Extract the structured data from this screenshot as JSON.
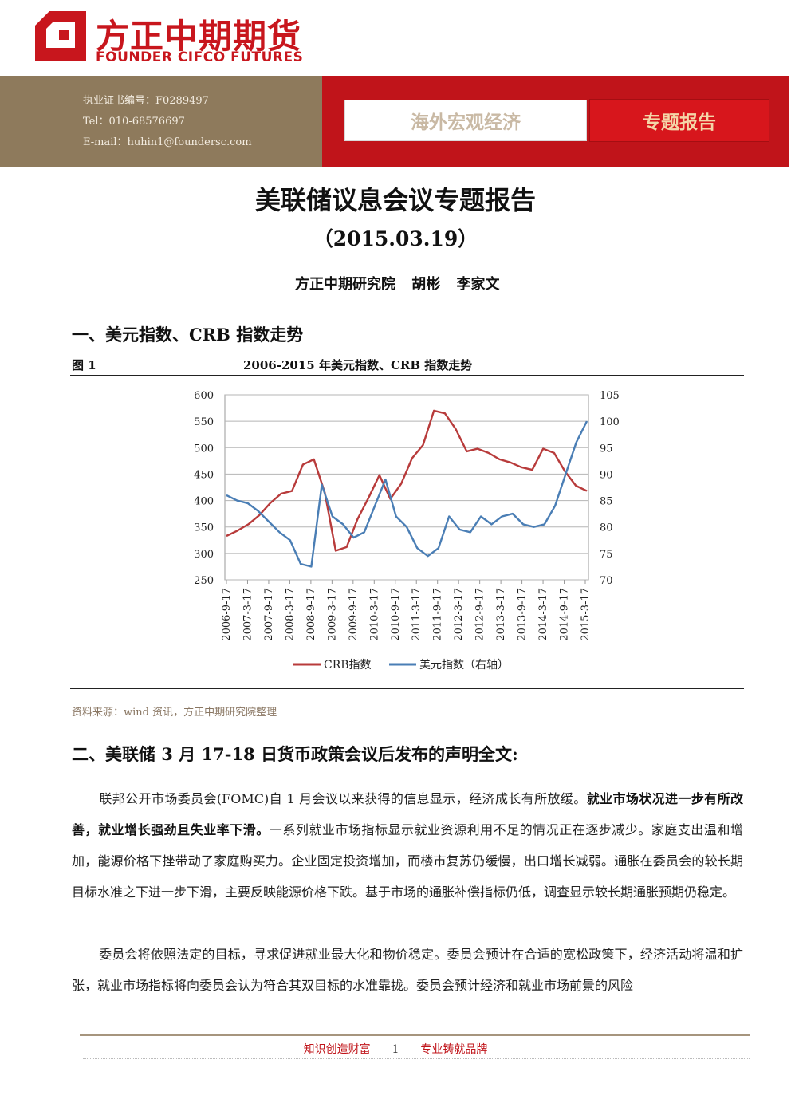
{
  "logo": {
    "cn": "方正中期期货",
    "en": "FOUNDER CIFCO FUTURES"
  },
  "header": {
    "license": "执业证书编号：F0289497",
    "tel": "Tel：010-68576697",
    "email": "E-mail：huhin1@foundersc.com",
    "tab_macro": "海外宏观经济",
    "tab_special": "专题报告"
  },
  "title": "美联储议息会议专题报告",
  "date": "（2015.03.19）",
  "authors": "方正中期研究院 胡彬 李家文",
  "section1": "一、美元指数、CRB 指数走势",
  "figure": {
    "label": "图 1",
    "title": "2006-2015 年美元指数、CRB 指数走势",
    "source": "资料来源：wind 资讯，方正中期研究院整理"
  },
  "chart_data": {
    "type": "line",
    "x_ticks": [
      "2006-9-17",
      "2007-3-17",
      "2007-9-17",
      "2008-3-17",
      "2008-9-17",
      "2009-3-17",
      "2009-9-17",
      "2010-3-17",
      "2010-9-17",
      "2011-3-17",
      "2011-9-17",
      "2012-3-17",
      "2012-9-17",
      "2013-3-17",
      "2013-9-17",
      "2014-3-17",
      "2014-9-17",
      "2015-3-17"
    ],
    "y_left": {
      "ticks": [
        "600",
        "550",
        "500",
        "450",
        "400",
        "350",
        "300",
        "250"
      ],
      "range": [
        250,
        600
      ]
    },
    "y_right": {
      "ticks": [
        "105",
        "100",
        "95",
        "90",
        "85",
        "80",
        "75",
        "70"
      ],
      "range": [
        70,
        105
      ]
    },
    "series": [
      {
        "name": "CRB指数",
        "axis": "left",
        "color": "#b83b3b",
        "values": [
          333,
          343,
          355,
          372,
          395,
          413,
          418,
          468,
          478,
          415,
          305,
          312,
          365,
          405,
          448,
          403,
          432,
          480,
          505,
          570,
          565,
          535,
          493,
          498,
          490,
          478,
          472,
          463,
          458,
          498,
          490,
          455,
          428,
          418
        ]
      },
      {
        "name": "美元指数（右轴）",
        "axis": "right",
        "color": "#4a7eb5",
        "values": [
          86,
          85,
          84.5,
          83,
          81,
          79,
          77.5,
          73,
          72.5,
          88,
          82,
          80.5,
          78,
          79,
          84,
          89,
          82,
          80,
          76,
          74.5,
          76,
          82,
          79.5,
          79,
          82,
          80.5,
          82,
          82.5,
          80.5,
          80,
          80.5,
          84,
          90,
          96,
          100
        ]
      }
    ],
    "legend": "bottom"
  },
  "section2": "二、美联储 3 月 17-18 日货币政策会议后发布的声明全文:",
  "para1": {
    "a": "联邦公开市场委员会(FOMC)自 1 月会议以来获得的信息显示，经济成长有所放缓。",
    "b": "就业市场状况进一步有所改善，就业增长强劲且失业率下滑。",
    "c": "一系列就业市场指标显示就业资源利用不足的情况正在逐步减少。家庭支出温和增加，能源价格下挫带动了家庭购买力。企业固定投资增加，而楼市复苏仍缓慢，出口增长减弱。通胀在委员会的较长期目标水准之下进一步下滑，主要反映能源价格下跌。基于市场的通胀补偿指标仍低，调查显示较长期通胀预期仍稳定。"
  },
  "para2": "委员会将依照法定的目标，寻求促进就业最大化和物价稳定。委员会预计在合适的宽松政策下，经济活动将温和扩张，就业市场指标将向委员会认为符合其双目标的水准靠拢。委员会预计经济和就业市场前景的风险",
  "footer": {
    "left": "知识创造财富",
    "page": "1",
    "right": "专业铸就品牌"
  }
}
